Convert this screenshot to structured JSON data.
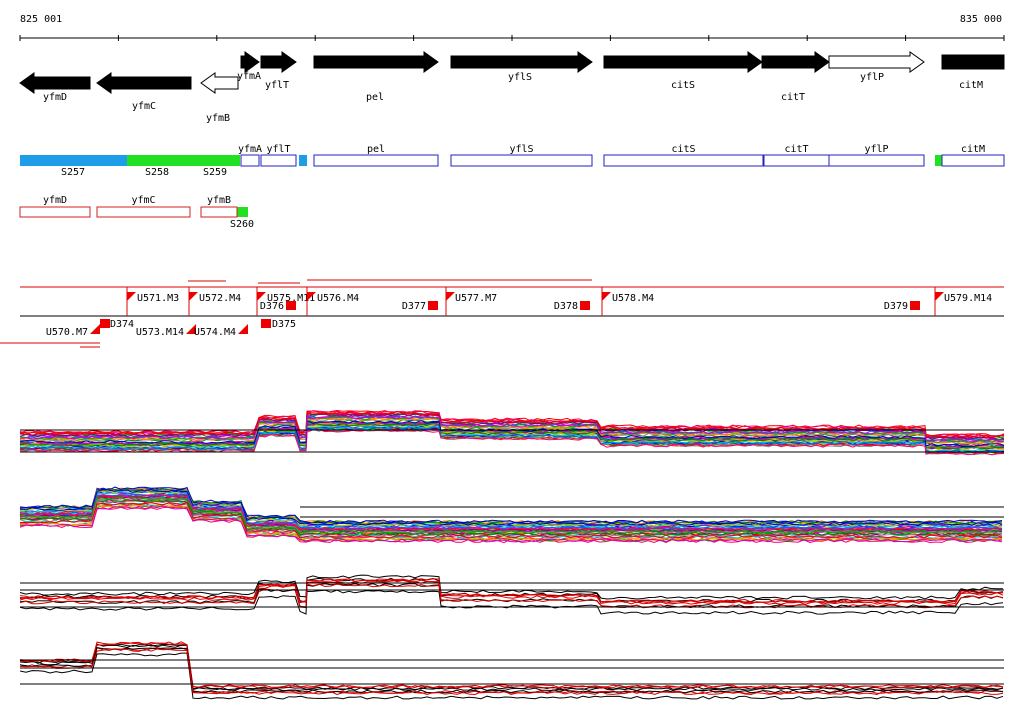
{
  "axis": {
    "start": "825 001",
    "end": "835 000"
  },
  "genes": [
    {
      "label": "yfmD"
    },
    {
      "label": "yfmC"
    },
    {
      "label": "yfmB"
    },
    {
      "label": "yfmA"
    },
    {
      "label": "yflT"
    },
    {
      "label": "pel"
    },
    {
      "label": "yflS"
    },
    {
      "label": "citS"
    },
    {
      "label": "citT"
    },
    {
      "label": "yflP"
    },
    {
      "label": "citM"
    }
  ],
  "segments": [
    {
      "label": "S257"
    },
    {
      "label": "S258"
    },
    {
      "label": "S259"
    },
    {
      "label": "S260"
    }
  ],
  "units_row1": [
    {
      "label": "yfmA"
    },
    {
      "label": "yflT"
    },
    {
      "label": "pel"
    },
    {
      "label": "yflS"
    },
    {
      "label": "citS"
    },
    {
      "label": "citT"
    },
    {
      "label": "yflP"
    },
    {
      "label": "citM"
    }
  ],
  "units_row2": [
    {
      "label": "yfmD"
    },
    {
      "label": "yfmC"
    },
    {
      "label": "yfmB"
    }
  ],
  "signals": [
    {
      "label": "U571.M3"
    },
    {
      "label": "U572.M4"
    },
    {
      "label": "U575.M11"
    },
    {
      "label": "U576.M4"
    },
    {
      "label": "U577.M7"
    },
    {
      "label": "U578.M4"
    },
    {
      "label": "U579.M14"
    },
    {
      "label": "D376"
    },
    {
      "label": "D377"
    },
    {
      "label": "D378"
    },
    {
      "label": "D379"
    },
    {
      "label": "U570.M7"
    },
    {
      "label": "D374"
    },
    {
      "label": "U573.M14"
    },
    {
      "label": "U574.M4"
    },
    {
      "label": "D375"
    }
  ]
}
